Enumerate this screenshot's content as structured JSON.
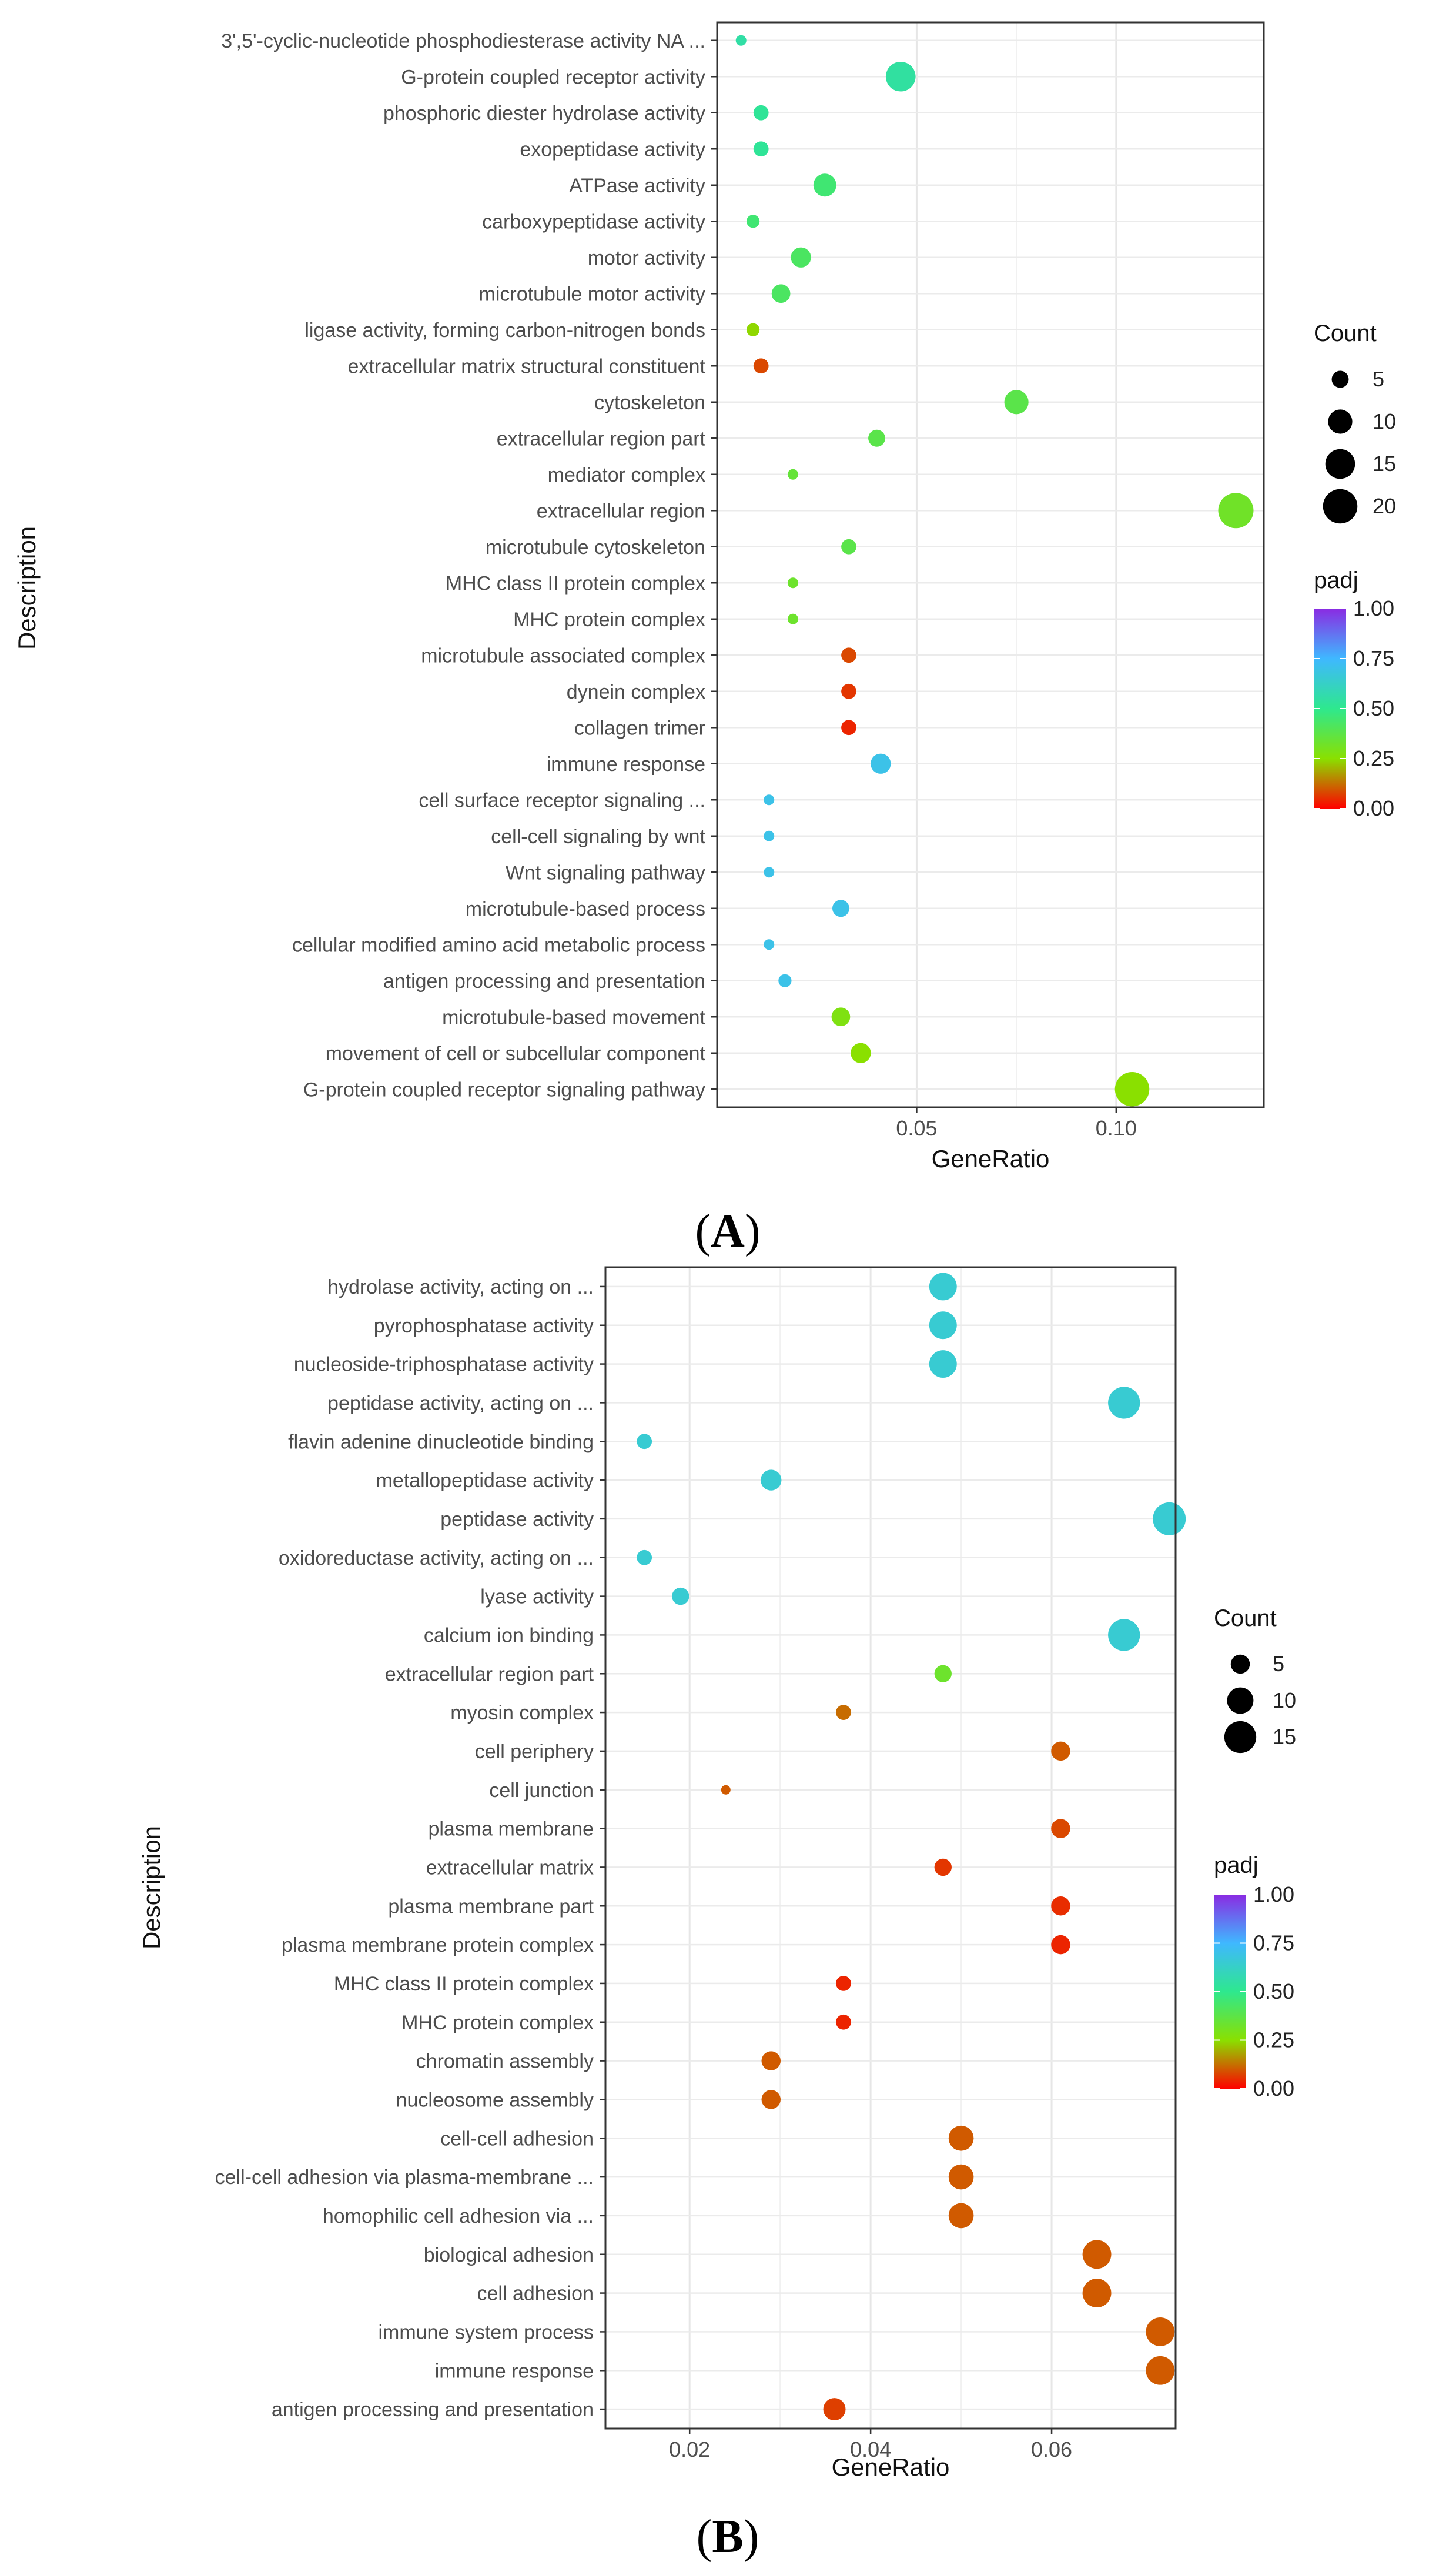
{
  "chart_data": [
    {
      "panel": "A",
      "caption_open": "(",
      "caption_letter": "A",
      "caption_close": ")",
      "type": "scatter",
      "title": "",
      "xlabel": "GeneRatio",
      "ylabel": "Description",
      "xlim": [
        0.0,
        0.137
      ],
      "xticks": [
        0.05,
        0.1
      ],
      "xtick_labels": [
        "0.05",
        "0.10"
      ],
      "size_legend": {
        "title": "Count",
        "values": [
          5,
          10,
          15,
          20
        ],
        "labels": [
          "5",
          "10",
          "15",
          "20"
        ]
      },
      "color_legend": {
        "title": "padj",
        "min": 0.0,
        "max": 1.0,
        "ticks": [
          1.0,
          0.75,
          0.5,
          0.25,
          0.0
        ],
        "labels": [
          "1.00",
          "0.75",
          "0.50",
          "0.25",
          "0.00"
        ]
      },
      "size_range": [
        2,
        21
      ],
      "points": [
        {
          "term": "3',5'-cyclic-nucleotide phosphodiesterase activity NA ...",
          "gene_ratio": 0.006,
          "count": 2,
          "padj": 0.55
        },
        {
          "term": "G-protein coupled receptor activity",
          "gene_ratio": 0.046,
          "count": 15,
          "padj": 0.54
        },
        {
          "term": "phosphoric diester hydrolase activity",
          "gene_ratio": 0.011,
          "count": 4,
          "padj": 0.52
        },
        {
          "term": "exopeptidase activity",
          "gene_ratio": 0.011,
          "count": 4,
          "padj": 0.52
        },
        {
          "term": "ATPase activity",
          "gene_ratio": 0.027,
          "count": 9,
          "padj": 0.45
        },
        {
          "term": "carboxypeptidase activity",
          "gene_ratio": 0.009,
          "count": 3,
          "padj": 0.45
        },
        {
          "term": "motor activity",
          "gene_ratio": 0.021,
          "count": 7,
          "padj": 0.42
        },
        {
          "term": "microtubule motor activity",
          "gene_ratio": 0.016,
          "count": 6,
          "padj": 0.42
        },
        {
          "term": "ligase activity, forming carbon-nitrogen bonds",
          "gene_ratio": 0.009,
          "count": 3,
          "padj": 0.24
        },
        {
          "term": "extracellular matrix structural constituent",
          "gene_ratio": 0.011,
          "count": 4,
          "padj": 0.08
        },
        {
          "term": "cytoskeleton",
          "gene_ratio": 0.075,
          "count": 10,
          "padj": 0.38
        },
        {
          "term": "extracellular region part",
          "gene_ratio": 0.04,
          "count": 5,
          "padj": 0.38
        },
        {
          "term": "mediator complex",
          "gene_ratio": 0.019,
          "count": 1,
          "padj": 0.35
        },
        {
          "term": "extracellular region",
          "gene_ratio": 0.13,
          "count": 21,
          "padj": 0.32
        },
        {
          "term": "microtubule cytoskeleton",
          "gene_ratio": 0.033,
          "count": 4,
          "padj": 0.38
        },
        {
          "term": "MHC class II protein complex",
          "gene_ratio": 0.019,
          "count": 1,
          "padj": 0.33
        },
        {
          "term": "MHC protein complex",
          "gene_ratio": 0.019,
          "count": 1,
          "padj": 0.33
        },
        {
          "term": "microtubule associated complex",
          "gene_ratio": 0.033,
          "count": 4,
          "padj": 0.08
        },
        {
          "term": "dynein complex",
          "gene_ratio": 0.033,
          "count": 4,
          "padj": 0.06
        },
        {
          "term": "collagen trimer",
          "gene_ratio": 0.033,
          "count": 4,
          "padj": 0.04
        },
        {
          "term": "immune response",
          "gene_ratio": 0.041,
          "count": 7,
          "padj": 0.7
        },
        {
          "term": "cell surface receptor signaling ...",
          "gene_ratio": 0.013,
          "count": 1,
          "padj": 0.7
        },
        {
          "term": "cell-cell signaling by wnt",
          "gene_ratio": 0.013,
          "count": 1,
          "padj": 0.7
        },
        {
          "term": "Wnt signaling pathway",
          "gene_ratio": 0.013,
          "count": 1,
          "padj": 0.7
        },
        {
          "term": "microtubule-based process",
          "gene_ratio": 0.031,
          "count": 5,
          "padj": 0.7
        },
        {
          "term": "cellular modified amino acid metabolic process",
          "gene_ratio": 0.013,
          "count": 1,
          "padj": 0.7
        },
        {
          "term": "antigen processing and presentation",
          "gene_ratio": 0.017,
          "count": 3,
          "padj": 0.7
        },
        {
          "term": "microtubule-based movement",
          "gene_ratio": 0.031,
          "count": 6,
          "padj": 0.28
        },
        {
          "term": "movement of cell or subcellular component",
          "gene_ratio": 0.036,
          "count": 7,
          "padj": 0.25
        },
        {
          "term": "G-protein coupled receptor signaling pathway",
          "gene_ratio": 0.104,
          "count": 20,
          "padj": 0.25
        }
      ]
    },
    {
      "panel": "B",
      "caption_open": "(",
      "caption_letter": "B",
      "caption_close": ")",
      "type": "scatter",
      "title": "",
      "xlabel": "GeneRatio",
      "ylabel": "Description",
      "xlim": [
        0.0107,
        0.0737
      ],
      "xticks": [
        0.02,
        0.04,
        0.06
      ],
      "xtick_labels": [
        "0.02",
        "0.04",
        "0.06"
      ],
      "size_legend": {
        "title": "Count",
        "values": [
          5,
          10,
          15
        ],
        "labels": [
          "5",
          "10",
          "15"
        ]
      },
      "color_legend": {
        "title": "padj",
        "min": 0.0,
        "max": 1.0,
        "ticks": [
          1.0,
          0.75,
          0.5,
          0.25,
          0.0
        ],
        "labels": [
          "1.00",
          "0.75",
          "0.50",
          "0.25",
          "0.00"
        ]
      },
      "size_range": [
        1,
        16
      ],
      "points": [
        {
          "term": "hydrolase activity, acting on ...",
          "gene_ratio": 0.048,
          "count": 11,
          "padj": 0.65
        },
        {
          "term": "pyrophosphatase activity",
          "gene_ratio": 0.048,
          "count": 11,
          "padj": 0.65
        },
        {
          "term": "nucleoside-triphosphatase activity",
          "gene_ratio": 0.048,
          "count": 11,
          "padj": 0.65
        },
        {
          "term": "peptidase activity, acting on ...",
          "gene_ratio": 0.068,
          "count": 15,
          "padj": 0.65
        },
        {
          "term": "flavin adenine dinucleotide binding",
          "gene_ratio": 0.015,
          "count": 3,
          "padj": 0.65
        },
        {
          "term": "metallopeptidase activity",
          "gene_ratio": 0.029,
          "count": 6,
          "padj": 0.65
        },
        {
          "term": "peptidase activity",
          "gene_ratio": 0.073,
          "count": 16,
          "padj": 0.65
        },
        {
          "term": "oxidoreductase activity, acting on ...",
          "gene_ratio": 0.015,
          "count": 3,
          "padj": 0.65
        },
        {
          "term": "lyase activity",
          "gene_ratio": 0.019,
          "count": 4,
          "padj": 0.65
        },
        {
          "term": "calcium ion binding",
          "gene_ratio": 0.068,
          "count": 15,
          "padj": 0.65
        },
        {
          "term": "extracellular region part",
          "gene_ratio": 0.048,
          "count": 4,
          "padj": 0.33
        },
        {
          "term": "myosin complex",
          "gene_ratio": 0.037,
          "count": 3,
          "padj": 0.12
        },
        {
          "term": "cell periphery",
          "gene_ratio": 0.061,
          "count": 5,
          "padj": 0.1
        },
        {
          "term": "cell junction",
          "gene_ratio": 0.024,
          "count": 1,
          "padj": 0.1
        },
        {
          "term": "plasma membrane",
          "gene_ratio": 0.061,
          "count": 5,
          "padj": 0.08
        },
        {
          "term": "extracellular matrix",
          "gene_ratio": 0.048,
          "count": 4,
          "padj": 0.06
        },
        {
          "term": "plasma membrane part",
          "gene_ratio": 0.061,
          "count": 5,
          "padj": 0.05
        },
        {
          "term": "plasma membrane protein complex",
          "gene_ratio": 0.061,
          "count": 5,
          "padj": 0.04
        },
        {
          "term": "MHC class II protein complex",
          "gene_ratio": 0.037,
          "count": 3,
          "padj": 0.04
        },
        {
          "term": "MHC protein complex",
          "gene_ratio": 0.037,
          "count": 3,
          "padj": 0.04
        },
        {
          "term": "chromatin assembly",
          "gene_ratio": 0.029,
          "count": 5,
          "padj": 0.1
        },
        {
          "term": "nucleosome assembly",
          "gene_ratio": 0.029,
          "count": 5,
          "padj": 0.1
        },
        {
          "term": "cell-cell adhesion",
          "gene_ratio": 0.05,
          "count": 9,
          "padj": 0.1
        },
        {
          "term": "cell-cell adhesion via plasma-membrane ...",
          "gene_ratio": 0.05,
          "count": 9,
          "padj": 0.1
        },
        {
          "term": "homophilic cell adhesion via ...",
          "gene_ratio": 0.05,
          "count": 9,
          "padj": 0.1
        },
        {
          "term": "biological adhesion",
          "gene_ratio": 0.065,
          "count": 12,
          "padj": 0.1
        },
        {
          "term": "cell adhesion",
          "gene_ratio": 0.065,
          "count": 12,
          "padj": 0.1
        },
        {
          "term": "immune system process",
          "gene_ratio": 0.072,
          "count": 12,
          "padj": 0.1
        },
        {
          "term": "immune response",
          "gene_ratio": 0.072,
          "count": 12,
          "padj": 0.1
        },
        {
          "term": "antigen processing and presentation",
          "gene_ratio": 0.036,
          "count": 7,
          "padj": 0.07
        }
      ]
    }
  ]
}
